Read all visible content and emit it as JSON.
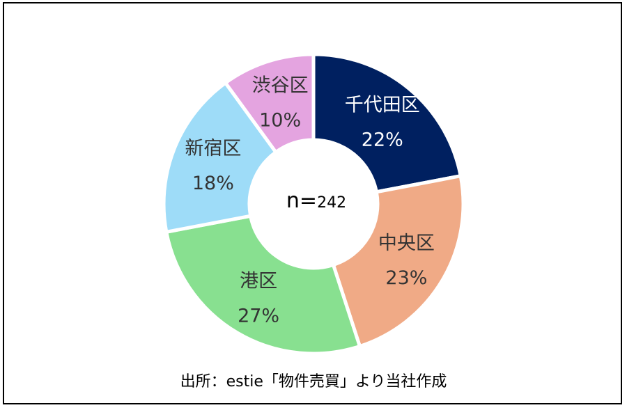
{
  "chart_data": {
    "type": "pie",
    "style": "donut",
    "center_label": {
      "prefix": "n=",
      "value": "242"
    },
    "slices": [
      {
        "name": "千代田区",
        "value": 22,
        "label": "22%",
        "color": "#002060",
        "text_color": "#ffffff"
      },
      {
        "name": "中央区",
        "value": 23,
        "label": "23%",
        "color": "#f0aa86",
        "text_color": "#333333"
      },
      {
        "name": "港区",
        "value": 27,
        "label": "27%",
        "color": "#88e090",
        "text_color": "#333333"
      },
      {
        "name": "新宿区",
        "value": 18,
        "label": "18%",
        "color": "#9edcf8",
        "text_color": "#333333"
      },
      {
        "name": "渋谷区",
        "value": 10,
        "label": "10%",
        "color": "#e4a4e0",
        "text_color": "#333333"
      }
    ]
  },
  "source_note": "出所：estie「物件売買」より当社作成"
}
